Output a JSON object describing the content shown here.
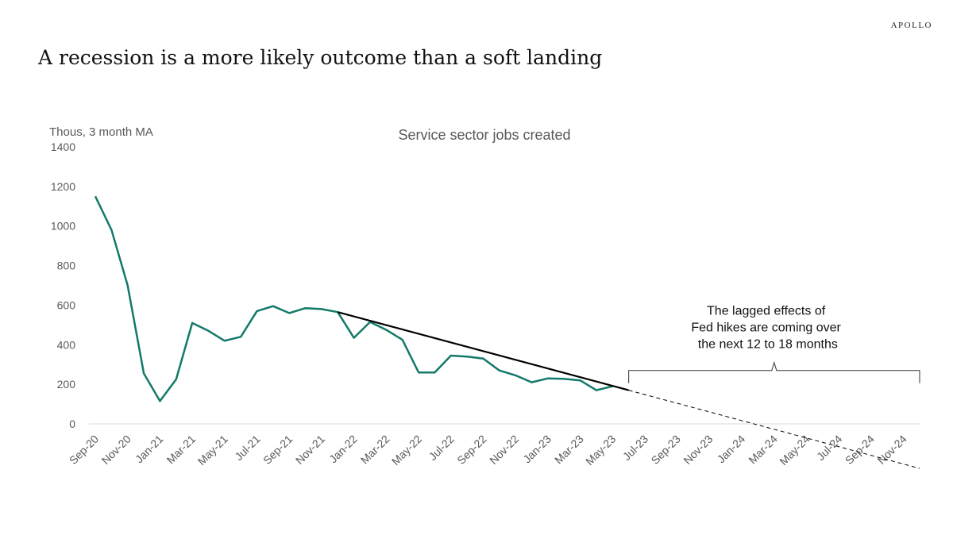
{
  "header": {
    "brand": "APOLLO",
    "headline": "A recession is a more likely outcome than a soft landing"
  },
  "chart_data": {
    "type": "line",
    "title": "Service sector jobs created",
    "ylabel": "Thous, 3 month MA",
    "ylim": [
      0,
      1400
    ],
    "yticks": [
      0,
      200,
      400,
      600,
      800,
      1000,
      1200,
      1400
    ],
    "x_axis_start": "2020-09",
    "x_axis_end": "2024-12",
    "xtick_labels": [
      "Sep-20",
      "Nov-20",
      "Jan-21",
      "Mar-21",
      "May-21",
      "Jul-21",
      "Sep-21",
      "Nov-21",
      "Jan-22",
      "Mar-22",
      "May-22",
      "Jul-22",
      "Sep-22",
      "Nov-22",
      "Jan-23",
      "Mar-23",
      "May-23",
      "Jul-23",
      "Sep-23",
      "Nov-23",
      "Jan-24",
      "Mar-24",
      "May-24",
      "Jul-24",
      "Sep-24",
      "Nov-24"
    ],
    "line_color": "#127a68",
    "series": [
      {
        "x": [
          "2020-09",
          "2020-10",
          "2020-11",
          "2020-12",
          "2021-01",
          "2021-02",
          "2021-03",
          "2021-04",
          "2021-05",
          "2021-06",
          "2021-07",
          "2021-08",
          "2021-09",
          "2021-10",
          "2021-11",
          "2021-12",
          "2022-01",
          "2022-02",
          "2022-03",
          "2022-04",
          "2022-05",
          "2022-06",
          "2022-07",
          "2022-08",
          "2022-09",
          "2022-10",
          "2022-11",
          "2022-12",
          "2023-01",
          "2023-02",
          "2023-03",
          "2023-04",
          "2023-05"
        ],
        "values": [
          1150,
          980,
          700,
          255,
          115,
          225,
          510,
          470,
          420,
          440,
          570,
          595,
          560,
          585,
          580,
          565,
          435,
          515,
          475,
          425,
          260,
          260,
          345,
          340,
          330,
          270,
          245,
          210,
          230,
          228,
          220,
          170,
          190
        ]
      }
    ],
    "trend_line": {
      "x": [
        "2021-12",
        "2023-06"
      ],
      "values": [
        565,
        170
      ]
    },
    "projection_line": {
      "x": [
        "2023-06",
        "2024-12"
      ],
      "values": [
        170,
        -225
      ]
    },
    "annotation": {
      "lines": [
        "The lagged effects of",
        "Fed hikes are coming over",
        "the next 12 to 18 months"
      ],
      "x_start": "2023-06",
      "x_end": "2024-12"
    }
  }
}
